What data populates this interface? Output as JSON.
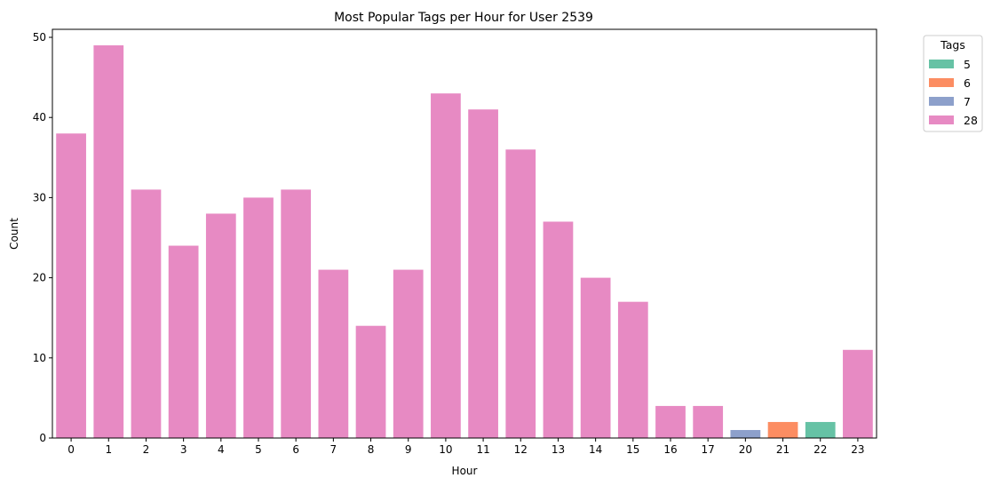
{
  "chart_data": {
    "type": "bar",
    "title": "Most Popular Tags per Hour for User 2539",
    "xlabel": "Hour",
    "ylabel": "Count",
    "ylim": [
      0,
      51
    ],
    "yticks": [
      0,
      10,
      20,
      30,
      40,
      50
    ],
    "grid": false,
    "legend": {
      "title": "Tags",
      "placement": "outside-top-right",
      "entries": [
        {
          "label": "5",
          "color": "#66c2a5"
        },
        {
          "label": "6",
          "color": "#fc8d62"
        },
        {
          "label": "7",
          "color": "#8da0cb"
        },
        {
          "label": "28",
          "color": "#e78ac3"
        }
      ]
    },
    "bars": [
      {
        "hour": "0",
        "value": 38,
        "tag": "28"
      },
      {
        "hour": "1",
        "value": 49,
        "tag": "28"
      },
      {
        "hour": "2",
        "value": 31,
        "tag": "28"
      },
      {
        "hour": "3",
        "value": 24,
        "tag": "28"
      },
      {
        "hour": "4",
        "value": 28,
        "tag": "28"
      },
      {
        "hour": "5",
        "value": 30,
        "tag": "28"
      },
      {
        "hour": "6",
        "value": 31,
        "tag": "28"
      },
      {
        "hour": "7",
        "value": 21,
        "tag": "28"
      },
      {
        "hour": "8",
        "value": 14,
        "tag": "28"
      },
      {
        "hour": "9",
        "value": 21,
        "tag": "28"
      },
      {
        "hour": "10",
        "value": 43,
        "tag": "28"
      },
      {
        "hour": "11",
        "value": 41,
        "tag": "28"
      },
      {
        "hour": "12",
        "value": 36,
        "tag": "28"
      },
      {
        "hour": "13",
        "value": 27,
        "tag": "28"
      },
      {
        "hour": "14",
        "value": 20,
        "tag": "28"
      },
      {
        "hour": "15",
        "value": 17,
        "tag": "28"
      },
      {
        "hour": "16",
        "value": 4,
        "tag": "28"
      },
      {
        "hour": "17",
        "value": 4,
        "tag": "28"
      },
      {
        "hour": "20",
        "value": 1,
        "tag": "7"
      },
      {
        "hour": "21",
        "value": 2,
        "tag": "6"
      },
      {
        "hour": "22",
        "value": 2,
        "tag": "5"
      },
      {
        "hour": "23",
        "value": 11,
        "tag": "28"
      }
    ]
  }
}
